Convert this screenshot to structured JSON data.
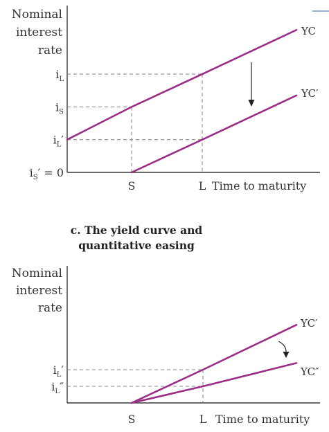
{
  "chart_data": [
    {
      "type": "line",
      "title": "",
      "ylabel": "Nominal interest rate",
      "ylabel_lines": [
        "Nominal",
        "interest",
        "rate"
      ],
      "xlabel": "Time to maturity",
      "xticks": [
        "S",
        "L"
      ],
      "y_levels": [
        {
          "label": "i",
          "sub": "L",
          "prime": "",
          "value": 3
        },
        {
          "label": "i",
          "sub": "S",
          "prime": "",
          "value": 2
        },
        {
          "label": "i",
          "sub": "L",
          "prime": "′",
          "value": 1
        },
        {
          "label": "i",
          "sub": "S",
          "prime": "′",
          "suffix": " = 0",
          "value": 0
        }
      ],
      "series": [
        {
          "name": "YC",
          "points": [
            {
              "x": "0",
              "y": 1
            },
            {
              "x": "S",
              "y": 2
            },
            {
              "x": "L",
              "y": 3
            },
            {
              "x": "end",
              "y": 4.35
            }
          ]
        },
        {
          "name": "YC′",
          "points": [
            {
              "x": "S",
              "y": 0
            },
            {
              "x": "L",
              "y": 1
            },
            {
              "x": "end",
              "y": 2.35
            }
          ]
        }
      ],
      "annotation": "downward shift arrow from YC to YC′"
    },
    {
      "type": "line",
      "title": "c. The yield curve and quantitative easing",
      "title_lines": [
        "c. The yield curve and",
        "quantitative easing"
      ],
      "ylabel": "Nominal interest rate",
      "ylabel_lines": [
        "Nominal",
        "interest",
        "rate"
      ],
      "xlabel": "Time to maturity",
      "xticks": [
        "S",
        "L"
      ],
      "y_levels": [
        {
          "label": "i",
          "sub": "L",
          "prime": "′",
          "value": 1.0
        },
        {
          "label": "i",
          "sub": "L",
          "prime": "″",
          "value": 0.5
        }
      ],
      "series": [
        {
          "name": "YC′",
          "points": [
            {
              "x": "S",
              "y": 0
            },
            {
              "x": "L",
              "y": 1.0
            },
            {
              "x": "end",
              "y": 2.35
            }
          ]
        },
        {
          "name": "YC″",
          "points": [
            {
              "x": "S",
              "y": 0
            },
            {
              "x": "L",
              "y": 0.5
            },
            {
              "x": "end",
              "y": 1.2
            }
          ]
        }
      ],
      "annotation": "curved arrow rotating YC′ down to YC″"
    }
  ],
  "colors": {
    "curve": "#9b2d86",
    "axis": "#3a3a3a",
    "dash": "#8a8a8a"
  }
}
